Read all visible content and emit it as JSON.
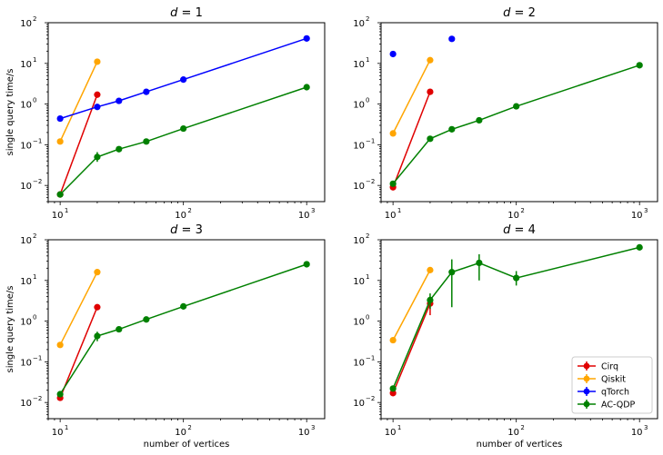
{
  "chart_data": [
    {
      "type": "line",
      "title": "d = 1",
      "title_var": "d",
      "title_value": "1",
      "xlabel": "",
      "ylabel": "single query time/s",
      "xscale": "log",
      "yscale": "log",
      "xlim": [
        8,
        1400
      ],
      "ylim": [
        0.004,
        100
      ],
      "legend": false,
      "series": [
        {
          "name": "Cirq",
          "color": "#e00000",
          "points": [
            [
              10,
              0.006
            ],
            [
              20,
              1.7
            ]
          ]
        },
        {
          "name": "Qiskit",
          "color": "#ffa500",
          "points": [
            [
              10,
              0.12
            ],
            [
              20,
              11
            ]
          ]
        },
        {
          "name": "qTorch",
          "color": "#0000ff",
          "points": [
            [
              10,
              0.44
            ],
            [
              20,
              0.85
            ],
            [
              30,
              1.2
            ],
            [
              50,
              2.0
            ],
            [
              100,
              4.0
            ],
            [
              1000,
              41
            ]
          ]
        },
        {
          "name": "AC-QDP",
          "color": "#008000",
          "points": [
            [
              10,
              0.006
            ],
            [
              20,
              0.05
            ],
            [
              30,
              0.078
            ],
            [
              50,
              0.12
            ],
            [
              100,
              0.25
            ],
            [
              1000,
              2.6
            ]
          ],
          "errors": [
            [
              0.006,
              0.006
            ],
            [
              0.038,
              0.066
            ],
            [
              0.07,
              0.087
            ],
            [
              0.112,
              0.128
            ],
            [
              0.24,
              0.26
            ],
            [
              2.5,
              2.7
            ]
          ]
        }
      ]
    },
    {
      "type": "line",
      "title": "d = 2",
      "title_var": "d",
      "title_value": "2",
      "xlabel": "",
      "ylabel": "",
      "xscale": "log",
      "yscale": "log",
      "xlim": [
        8,
        1400
      ],
      "ylim": [
        0.004,
        100
      ],
      "legend": false,
      "series": [
        {
          "name": "Cirq",
          "color": "#e00000",
          "points": [
            [
              10,
              0.009
            ],
            [
              20,
              2.0
            ]
          ]
        },
        {
          "name": "Qiskit",
          "color": "#ffa500",
          "points": [
            [
              10,
              0.19
            ],
            [
              20,
              12
            ]
          ]
        },
        {
          "name": "qTorch",
          "color": "#0000ff",
          "points": [
            [
              10,
              17
            ],
            [
              30,
              40
            ]
          ],
          "no_line": true
        },
        {
          "name": "AC-QDP",
          "color": "#008000",
          "points": [
            [
              10,
              0.011
            ],
            [
              20,
              0.14
            ],
            [
              30,
              0.24
            ],
            [
              50,
              0.4
            ],
            [
              100,
              0.88
            ],
            [
              1000,
              9.0
            ]
          ]
        }
      ]
    },
    {
      "type": "line",
      "title": "d = 3",
      "title_var": "d",
      "title_value": "3",
      "xlabel": "number of vertices",
      "ylabel": "single query time/s",
      "xscale": "log",
      "yscale": "log",
      "xlim": [
        8,
        1400
      ],
      "ylim": [
        0.004,
        100
      ],
      "legend": false,
      "series": [
        {
          "name": "Cirq",
          "color": "#e00000",
          "points": [
            [
              10,
              0.013
            ],
            [
              20,
              2.2
            ]
          ]
        },
        {
          "name": "Qiskit",
          "color": "#ffa500",
          "points": [
            [
              10,
              0.26
            ],
            [
              20,
              16
            ]
          ]
        },
        {
          "name": "AC-QDP",
          "color": "#008000",
          "points": [
            [
              10,
              0.016
            ],
            [
              20,
              0.43
            ],
            [
              30,
              0.63
            ],
            [
              50,
              1.1
            ],
            [
              100,
              2.3
            ],
            [
              1000,
              25
            ]
          ],
          "errors": [
            [
              0.015,
              0.017
            ],
            [
              0.32,
              0.55
            ],
            [
              0.6,
              0.66
            ],
            [
              1.05,
              1.15
            ],
            [
              2.2,
              2.4
            ],
            [
              24,
              26
            ]
          ]
        }
      ]
    },
    {
      "type": "line",
      "title": "d = 4",
      "title_var": "d",
      "title_value": "4",
      "xlabel": "number of vertices",
      "ylabel": "",
      "xscale": "log",
      "yscale": "log",
      "xlim": [
        8,
        1400
      ],
      "ylim": [
        0.004,
        100
      ],
      "legend": true,
      "legend_loc": "lower right",
      "series": [
        {
          "name": "Cirq",
          "color": "#e00000",
          "points": [
            [
              10,
              0.017
            ],
            [
              20,
              2.7
            ]
          ],
          "errors": [
            [
              0.016,
              0.018
            ],
            [
              1.4,
              4.0
            ]
          ]
        },
        {
          "name": "Qiskit",
          "color": "#ffa500",
          "points": [
            [
              10,
              0.34
            ],
            [
              20,
              18
            ]
          ]
        },
        {
          "name": "qTorch",
          "color": "#0000ff",
          "points": []
        },
        {
          "name": "AC-QDP",
          "color": "#008000",
          "points": [
            [
              10,
              0.022
            ],
            [
              20,
              3.3
            ],
            [
              30,
              16
            ],
            [
              50,
              27
            ],
            [
              100,
              11.5
            ],
            [
              1000,
              65
            ]
          ],
          "errors": [
            [
              0.02,
              0.024
            ],
            [
              2.0,
              4.8
            ],
            [
              2.2,
              33
            ],
            [
              10,
              44
            ],
            [
              7.5,
              17
            ],
            [
              62,
              68
            ]
          ]
        }
      ]
    }
  ]
}
